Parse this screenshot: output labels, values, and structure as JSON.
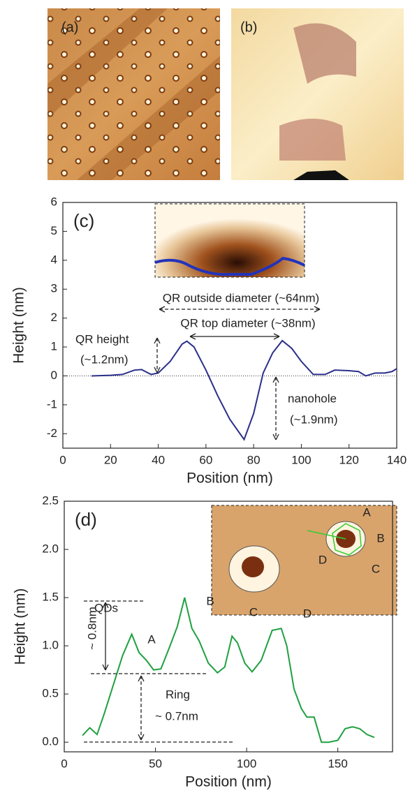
{
  "panels": {
    "a": "(a)",
    "b": "(b)"
  },
  "chart_data": [
    {
      "type": "line",
      "title": "(c)",
      "xlabel": "Position (nm)",
      "ylabel": "Height (nm)",
      "xlim": [
        0,
        140
      ],
      "ylim": [
        -2.5,
        6
      ],
      "xticks": [
        0,
        20,
        40,
        60,
        80,
        100,
        120,
        140
      ],
      "yticks": [
        -2,
        -1,
        0,
        1,
        2,
        3,
        4,
        5,
        6
      ],
      "x": [
        12,
        20,
        25,
        30,
        33,
        37,
        40,
        45,
        50,
        52,
        55,
        60,
        65,
        70,
        76,
        80,
        84,
        88,
        92,
        96,
        100,
        105,
        110,
        114,
        120,
        124,
        127,
        131,
        135,
        138,
        140
      ],
      "series": [
        {
          "color": "#2b2f8a",
          "values": [
            0,
            0.02,
            0.05,
            0.2,
            0.22,
            0.05,
            0.1,
            0.5,
            1.1,
            1.2,
            1.0,
            0.2,
            -0.7,
            -1.5,
            -2.2,
            -1.3,
            0.1,
            0.8,
            1.22,
            0.95,
            0.5,
            0.05,
            0.05,
            0.2,
            0.18,
            0.15,
            0.0,
            0.1,
            0.1,
            0.15,
            0.25
          ]
        }
      ],
      "annotations": [
        "QR outside diameter (~64nm)",
        "QR top diameter (~38nm)",
        "QR height",
        "(~1.2nm)",
        "nanohole",
        "(~1.9nm)"
      ]
    },
    {
      "type": "line",
      "title": "(d)",
      "xlabel": "Position (nm)",
      "ylabel": "Height (nm)",
      "xlim": [
        0,
        180
      ],
      "ylim": [
        -0.1,
        2.5
      ],
      "xticks": [
        0,
        50,
        100,
        150
      ],
      "yticks": [
        {
          "value": 0,
          "label": "0.0"
        },
        {
          "value": 0.5,
          "label": "0.5"
        },
        {
          "value": 1,
          "label": "1.0"
        },
        {
          "value": 1.5,
          "label": "1.5"
        },
        {
          "value": 2,
          "label": "2.0"
        },
        {
          "value": 2.5,
          "label": "2.5"
        }
      ],
      "x": [
        10,
        14,
        18,
        22,
        27,
        32,
        37,
        41,
        45,
        49,
        53,
        58,
        62,
        66,
        70,
        74,
        79,
        84,
        88,
        92,
        95,
        99,
        103,
        108,
        114,
        119,
        122,
        126,
        130,
        133,
        137,
        141,
        145,
        150,
        154,
        158,
        162,
        166,
        170
      ],
      "series": [
        {
          "color": "#1fa040",
          "values": [
            0.07,
            0.15,
            0.08,
            0.3,
            0.6,
            0.9,
            1.12,
            0.93,
            0.85,
            0.75,
            0.76,
            1.0,
            1.2,
            1.5,
            1.18,
            1.05,
            0.82,
            0.72,
            0.78,
            1.1,
            1.03,
            0.82,
            0.73,
            0.85,
            1.16,
            1.18,
            1.0,
            0.55,
            0.35,
            0.26,
            0.26,
            0.0,
            0.0,
            0.02,
            0.14,
            0.16,
            0.14,
            0.08,
            0.05
          ]
        }
      ],
      "annotations": [
        "QDs",
        "~ 0.8nm",
        "Ring",
        "~ 0.7nm",
        "A",
        "B",
        "C",
        "D",
        "A",
        "B",
        "C",
        "D"
      ]
    }
  ]
}
